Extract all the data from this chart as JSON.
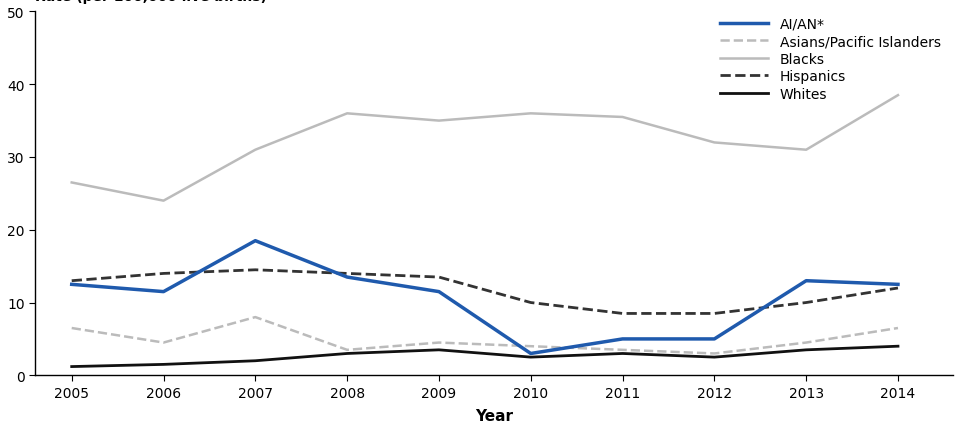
{
  "years": [
    2005,
    2006,
    2007,
    2008,
    2009,
    2010,
    2011,
    2012,
    2013,
    2014
  ],
  "series": {
    "AI/AN*": {
      "values": [
        12.5,
        11.5,
        18.5,
        13.5,
        11.5,
        3.0,
        5.0,
        5.0,
        13.0,
        12.5
      ],
      "color": "#1f5aad",
      "linestyle": "solid",
      "linewidth": 2.5,
      "zorder": 5
    },
    "Asians/Pacific Islanders": {
      "values": [
        6.5,
        4.5,
        8.0,
        3.5,
        4.5,
        4.0,
        3.5,
        3.0,
        4.5,
        6.5
      ],
      "color": "#bbbbbb",
      "linestyle": "dashed",
      "linewidth": 1.8,
      "zorder": 3
    },
    "Blacks": {
      "values": [
        26.5,
        24.0,
        31.0,
        36.0,
        35.0,
        36.0,
        35.5,
        32.0,
        31.0,
        38.5
      ],
      "color": "#bbbbbb",
      "linestyle": "solid",
      "linewidth": 1.8,
      "zorder": 3
    },
    "Hispanics": {
      "values": [
        13.0,
        14.0,
        14.5,
        14.0,
        13.5,
        10.0,
        8.5,
        8.5,
        10.0,
        12.0
      ],
      "color": "#333333",
      "linestyle": "dashed",
      "linewidth": 2.0,
      "zorder": 4
    },
    "Whites": {
      "values": [
        1.2,
        1.5,
        2.0,
        3.0,
        3.5,
        2.5,
        3.0,
        2.5,
        3.5,
        4.0
      ],
      "color": "#111111",
      "linestyle": "solid",
      "linewidth": 2.0,
      "zorder": 4
    }
  },
  "xlabel": "Year",
  "ylim": [
    0,
    50
  ],
  "yticks": [
    0,
    10,
    20,
    30,
    40,
    50
  ],
  "xticks": [
    2005,
    2006,
    2007,
    2008,
    2009,
    2010,
    2011,
    2012,
    2013,
    2014
  ],
  "xlim": [
    2004.6,
    2014.6
  ],
  "legend_order": [
    "AI/AN*",
    "Asians/Pacific Islanders",
    "Blacks",
    "Hispanics",
    "Whites"
  ],
  "background_color": "#ffffff"
}
